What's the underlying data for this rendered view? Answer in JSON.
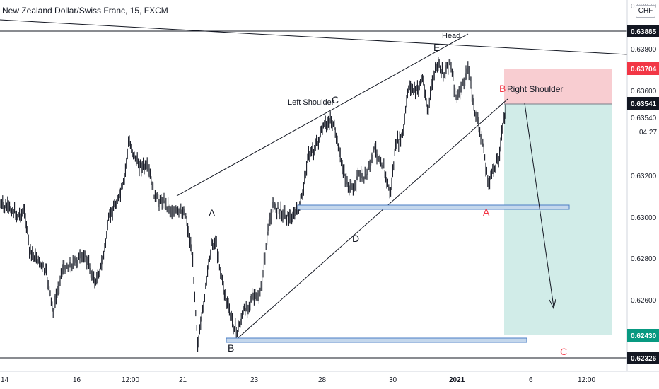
{
  "header": {
    "title": "New Zealand Dollar/Swiss Franc, 15, FXCM",
    "currency": "CHF"
  },
  "chart_data": {
    "type": "candlestick",
    "symbol": "New Zealand Dollar/Swiss Franc",
    "interval": "15",
    "source": "FXCM",
    "y_axis": {
      "range": [
        0.6228,
        0.6395
      ],
      "ticks": [
        "0.63800",
        "0.63600",
        "0.63540",
        "0.63200",
        "0.63000",
        "0.62800",
        "0.62600"
      ],
      "top_partial_tick": "0.63970",
      "countdown": "04:27"
    },
    "x_axis": {
      "ticks": [
        "14",
        "16",
        "12:00",
        "21",
        "23",
        "28",
        "30",
        "2021",
        "6",
        "12:00"
      ]
    },
    "price_tags": [
      {
        "value": "0.63885",
        "kind": "line",
        "color": "#131722"
      },
      {
        "value": "0.63704",
        "kind": "stop",
        "color": "#f23645"
      },
      {
        "value": "0.63541",
        "kind": "last",
        "color": "#131722"
      },
      {
        "value": "0.62430",
        "kind": "target",
        "color": "#089981"
      },
      {
        "value": "0.62326",
        "kind": "line",
        "color": "#131722"
      }
    ],
    "horizontal_lines": [
      0.63885,
      0.62326
    ],
    "support_zones": [
      {
        "top": 0.63048,
        "bottom": 0.63032
      },
      {
        "top": 0.62438,
        "bottom": 0.62422
      }
    ],
    "position": {
      "type": "short",
      "entry": 0.63541,
      "stop": 0.63704,
      "target": 0.6243
    },
    "labels": {
      "head": "Head",
      "left_shoulder": "Left Shoulder",
      "right_shoulder": "Right Shoulder",
      "wave_points": [
        "A",
        "B",
        "C",
        "D",
        "E",
        "A",
        "B",
        "C"
      ]
    },
    "colors": {
      "candle": "#131722",
      "stop_zone": "#f8cdd1",
      "target_zone": "#d1ece8",
      "zone_fill": "#c4d7ec",
      "zone_border": "#4a7cc4",
      "wave_red": "#f23645"
    }
  }
}
